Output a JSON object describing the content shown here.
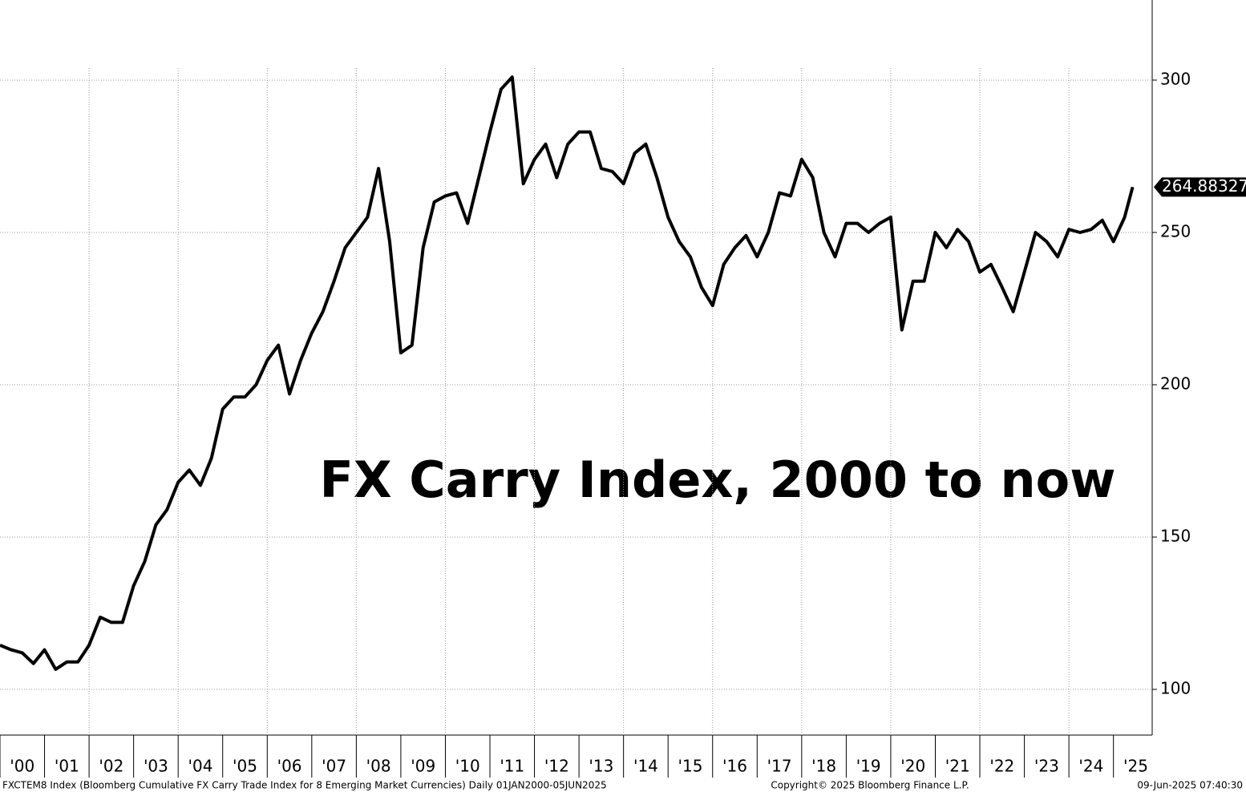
{
  "chart_data": {
    "type": "line",
    "annotation": "FX Carry Index, 2000 to now",
    "source": "FXCTEM8 Index (Bloomberg Cumulative FX Carry Trade Index for 8 Emerging Market Currencies)  Daily 01JAN2000-05JUN2025",
    "copyright": "Copyright© 2025 Bloomberg Finance L.P.",
    "timestamp": "09-Jun-2025 07:40:30",
    "last_value": 264.88327,
    "color": "#000000",
    "xlim": [
      2000,
      2025.87
    ],
    "ylim": [
      85,
      326.3
    ],
    "yticks": [
      100,
      150,
      200,
      250,
      300
    ],
    "xticks": [
      {
        "value": 2000,
        "label": "'00"
      },
      {
        "value": 2001,
        "label": "'01"
      },
      {
        "value": 2002,
        "label": "'02"
      },
      {
        "value": 2003,
        "label": "'03"
      },
      {
        "value": 2004,
        "label": "'04"
      },
      {
        "value": 2005,
        "label": "'05"
      },
      {
        "value": 2006,
        "label": "'06"
      },
      {
        "value": 2007,
        "label": "'07"
      },
      {
        "value": 2008,
        "label": "'08"
      },
      {
        "value": 2009,
        "label": "'09"
      },
      {
        "value": 2010,
        "label": "'10"
      },
      {
        "value": 2011,
        "label": "'11"
      },
      {
        "value": 2012,
        "label": "'12"
      },
      {
        "value": 2013,
        "label": "'13"
      },
      {
        "value": 2014,
        "label": "'14"
      },
      {
        "value": 2015,
        "label": "'15"
      },
      {
        "value": 2016,
        "label": "'16"
      },
      {
        "value": 2017,
        "label": "'17"
      },
      {
        "value": 2018,
        "label": "'18"
      },
      {
        "value": 2019,
        "label": "'19"
      },
      {
        "value": 2020,
        "label": "'20"
      },
      {
        "value": 2021,
        "label": "'21"
      },
      {
        "value": 2022,
        "label": "'22"
      },
      {
        "value": 2023,
        "label": "'23"
      },
      {
        "value": 2024,
        "label": "'24"
      },
      {
        "value": 2025,
        "label": "'25"
      }
    ],
    "xgrid": [
      2002,
      2004,
      2006,
      2008,
      2010,
      2012,
      2014,
      2016,
      2018,
      2020,
      2022,
      2024
    ],
    "grid": true,
    "x": [
      2000,
      2000.25,
      2000.5,
      2000.75,
      2001,
      2001.25,
      2001.5,
      2001.75,
      2002,
      2002.25,
      2002.5,
      2002.75,
      2003,
      2003.25,
      2003.5,
      2003.75,
      2004,
      2004.25,
      2004.5,
      2004.75,
      2005,
      2005.25,
      2005.5,
      2005.75,
      2006,
      2006.25,
      2006.5,
      2006.75,
      2007,
      2007.25,
      2007.5,
      2007.75,
      2008,
      2008.25,
      2008.5,
      2008.75,
      2009,
      2009.25,
      2009.5,
      2009.75,
      2010,
      2010.25,
      2010.5,
      2010.75,
      2011,
      2011.25,
      2011.5,
      2011.75,
      2012,
      2012.25,
      2012.5,
      2012.75,
      2013,
      2013.25,
      2013.5,
      2013.75,
      2014,
      2014.25,
      2014.5,
      2014.75,
      2015,
      2015.25,
      2015.5,
      2015.75,
      2016,
      2016.25,
      2016.5,
      2016.75,
      2017,
      2017.25,
      2017.5,
      2017.75,
      2018,
      2018.25,
      2018.5,
      2018.75,
      2019,
      2019.25,
      2019.5,
      2019.75,
      2020,
      2020.25,
      2020.5,
      2020.75,
      2021,
      2021.25,
      2021.5,
      2021.75,
      2022,
      2022.25,
      2022.5,
      2022.75,
      2023,
      2023.25,
      2023.5,
      2023.75,
      2024,
      2024.25,
      2024.5,
      2024.75,
      2025,
      2025.25,
      2025.43
    ],
    "values": [
      114.5,
      113,
      112,
      108.5,
      113,
      106.6,
      109,
      109,
      114.5,
      123.7,
      122,
      122,
      134,
      142,
      154,
      159,
      168,
      172,
      167,
      176,
      192,
      196,
      196,
      200,
      208,
      213,
      197,
      208,
      217,
      224,
      234,
      245,
      250,
      255,
      271,
      247,
      210.5,
      213,
      245,
      260,
      262,
      263,
      253,
      268,
      283,
      297,
      301,
      266,
      274,
      279,
      268,
      279,
      283,
      283,
      271,
      270,
      266,
      276,
      279,
      268,
      255,
      247,
      242,
      232,
      226,
      239.5,
      245,
      249,
      242,
      250,
      263,
      262,
      274,
      268,
      250,
      242,
      253,
      253,
      250,
      253,
      255,
      218,
      234,
      234,
      250,
      245,
      251,
      247,
      237,
      239.5,
      232,
      224,
      237,
      250,
      247,
      242,
      251,
      250,
      251,
      254,
      247,
      255,
      264.88327
    ]
  }
}
